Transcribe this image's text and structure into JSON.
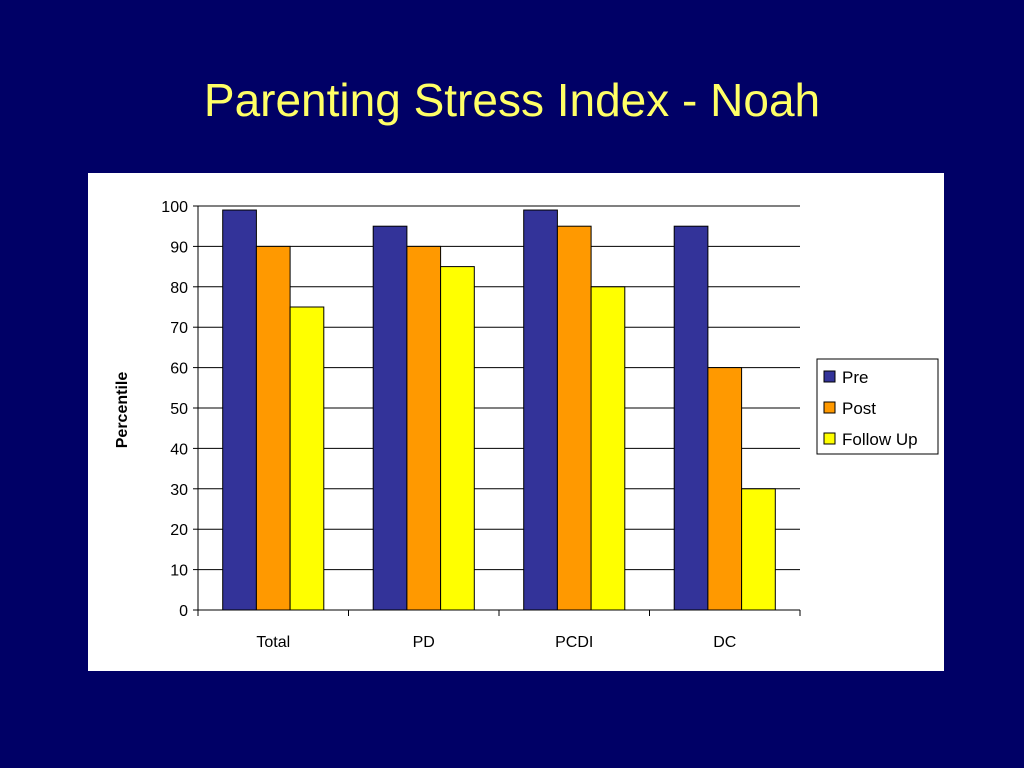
{
  "slide": {
    "title": "Parenting Stress Index - Noah"
  },
  "chart_data": {
    "type": "bar",
    "title": "",
    "xlabel": "",
    "ylabel": "Percentile",
    "categories": [
      "Total",
      "PD",
      "PCDI",
      "DC"
    ],
    "series": [
      {
        "name": "Pre",
        "values": [
          99,
          95,
          99,
          95
        ],
        "color": "#333399"
      },
      {
        "name": "Post",
        "values": [
          90,
          90,
          95,
          60
        ],
        "color": "#FF9900"
      },
      {
        "name": "Follow Up",
        "values": [
          75,
          85,
          80,
          30
        ],
        "color": "#FFFF00"
      }
    ],
    "ylim": [
      0,
      100
    ],
    "yticks": [
      0,
      10,
      20,
      30,
      40,
      50,
      60,
      70,
      80,
      90,
      100
    ],
    "grid": true,
    "legend_position": "right"
  }
}
